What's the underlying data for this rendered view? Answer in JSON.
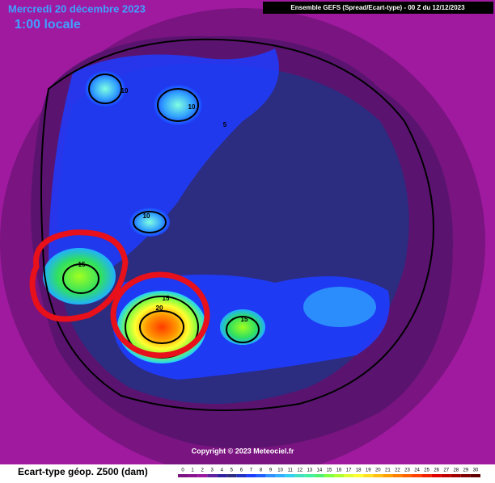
{
  "header": {
    "date": "Mercredi 20 décembre 2023",
    "time": "1:00 locale",
    "model": "Ensemble GEFS  (Spread/Ecart-type) - 00 Z du 12/12/2023"
  },
  "contour_labels": [
    10,
    10,
    5,
    10,
    15,
    20,
    15,
    15
  ],
  "copyright": "Copyright © 2023 Meteociel.fr",
  "legend": {
    "title": "Ecart-type géop. Z500 (dam)",
    "ticks": [
      0,
      1,
      2,
      3,
      4,
      5,
      6,
      7,
      8,
      9,
      10,
      11,
      12,
      13,
      14,
      15,
      16,
      17,
      18,
      19,
      20,
      21,
      22,
      23,
      24,
      25,
      26,
      27,
      28,
      29,
      30
    ]
  }
}
